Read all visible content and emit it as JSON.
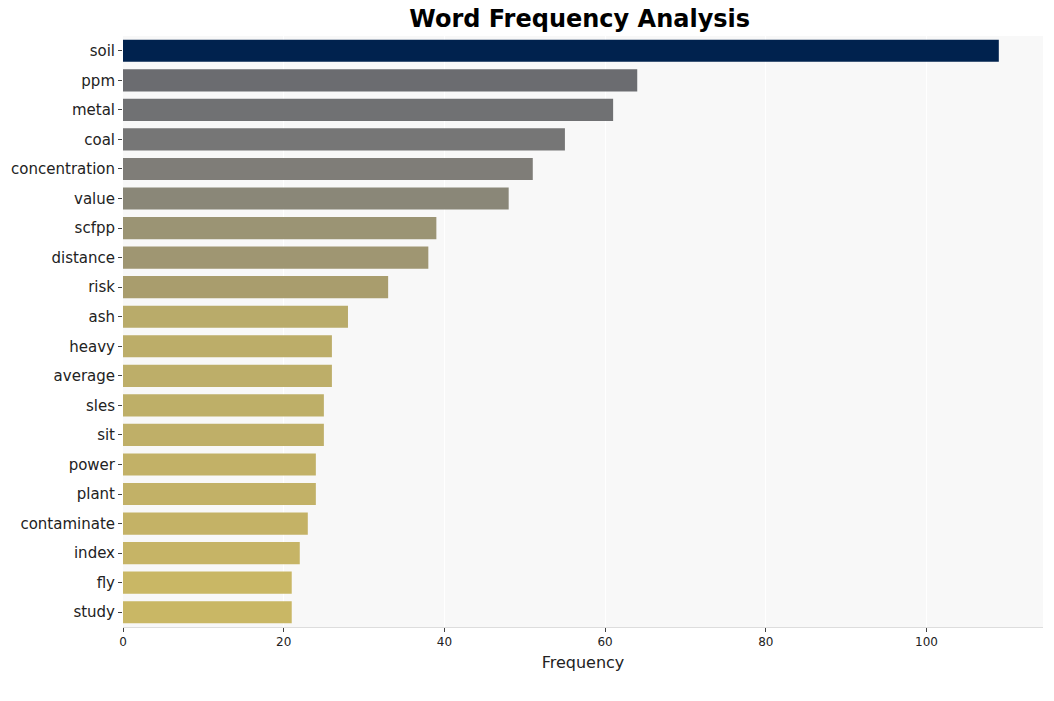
{
  "chart_data": {
    "type": "bar",
    "orientation": "horizontal",
    "title": "Word Frequency Analysis",
    "x_label": "Frequency",
    "categories": [
      "soil",
      "ppm",
      "metal",
      "coal",
      "concentration",
      "value",
      "scfpp",
      "distance",
      "risk",
      "ash",
      "heavy",
      "average",
      "sles",
      "sit",
      "power",
      "plant",
      "contaminate",
      "index",
      "fly",
      "study"
    ],
    "values": [
      109,
      64,
      61,
      55,
      51,
      48,
      39,
      38,
      33,
      28,
      26,
      26,
      25,
      25,
      24,
      24,
      23,
      22,
      21,
      21
    ],
    "colors": [
      "#00224e",
      "#6b6c70",
      "#707173",
      "#767676",
      "#7f7d78",
      "#8a8778",
      "#9b9474",
      "#9f9672",
      "#a99d6d",
      "#b9ab6a",
      "#bcad69",
      "#bdae69",
      "#beaf68",
      "#bfaf68",
      "#c2b167",
      "#c2b167",
      "#c4b266",
      "#c6b466",
      "#c9b765",
      "#c9b765"
    ],
    "xlim": [
      0,
      114.5
    ],
    "xticks": [
      0,
      20,
      40,
      60,
      80,
      100
    ],
    "grid": true
  }
}
